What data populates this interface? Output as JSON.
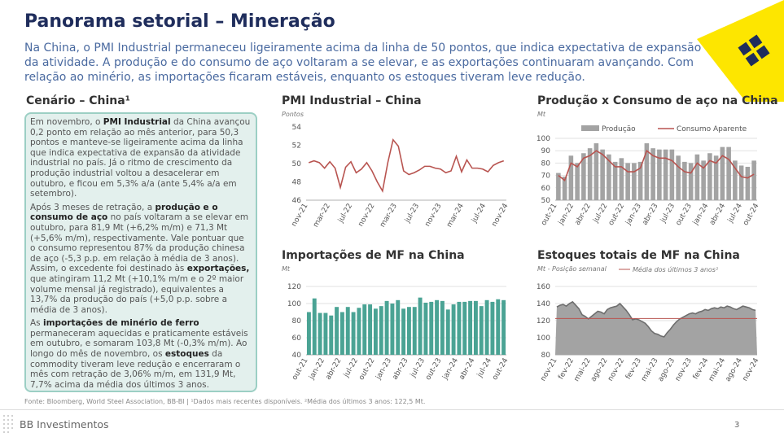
{
  "header": {
    "title": "Panorama setorial – Mineração",
    "subtitle": "Na China, o PMI Industrial permaneceu ligeiramente acima da linha de 50 pontos, que indica expectativa de expansão da atividade. A produção e do consumo de aço voltaram a se elevar, e as exportações continuaram avançando. Com relação ao minério, as importações ficaram estáveis, enquanto os estoques tiveram leve redução."
  },
  "colors": {
    "title": "#1f2d5c",
    "accent_yellow": "#fde600",
    "teal": "#4aa394",
    "grey_bar": "#9e9e9e",
    "red_line": "#b85450"
  },
  "scenario": {
    "heading": "Cenário – China¹",
    "p1_a": "Em novembro, o ",
    "p1_b": "PMI Industrial",
    "p1_c": " da China avançou 0,2 ponto em relação ao mês anterior, para 50,3 pontos e manteve-se ligeiramente acima da linha que indica expectativa de expansão da atividade industrial no país. Já o ritmo de crescimento da produção industrial voltou a desacelerar em outubro, e ficou em 5,3% a/a (ante 5,4% a/a em setembro).",
    "p2_a": "Após 3 meses de retração, a ",
    "p2_b": "produção e o consumo de aço",
    "p2_c": " no país voltaram a se elevar em outubro, para 81,9 Mt (+6,2% m/m) e 71,3 Mt (+5,6% m/m), respectivamente. Vale pontuar que o consumo representou 87% da produção chinesa de aço (-5,3 p.p. em relação à média de 3 anos). Assim, o excedente foi destinado às ",
    "p2_d": "exportações,",
    "p2_e": " que atingiram 11,2 Mt (+10,1% m/m e o 2º maior volume mensal já registrado), equivalentes a 13,7% da produção do país (+5,0 p.p. sobre a média de 3 anos).",
    "p3_a": "As ",
    "p3_b": "importações de minério de ferro",
    "p3_c": " permaneceram aquecidas e praticamente estáveis em outubro, e somaram 103,8 Mt (-0,3% m/m). Ao longo do mês de novembro, os ",
    "p3_d": "estoques",
    "p3_e": " da commodity tiveram leve redução e encerraram o mês com retração de 3,06% m/m, em 131,9 Mt, 7,7% acima da média dos últimos 3 anos."
  },
  "footnote": "Fonte: Bloomberg, World Steel Association, BB-BI | ¹Dados mais recentes disponíveis. ²Média dos últimos 3 anos: 122,5 Mt.",
  "footer": {
    "brand": "BB Investimentos",
    "page": "3"
  },
  "chart_data": [
    {
      "type": "line",
      "title": "PMI Industrial – China",
      "ylabel": "Pontos",
      "ylim": [
        46,
        54
      ],
      "yticks": [
        46,
        48,
        50,
        52,
        54
      ],
      "xticks": [
        "nov-21",
        "mar-22",
        "jul-22",
        "nov-22",
        "mar-23",
        "jul-23",
        "nov-23",
        "mar-24",
        "jul-24",
        "nov-24"
      ],
      "series": [
        {
          "values": [
            50.1,
            50.3,
            50.1,
            49.5,
            50.2,
            49.5,
            47.4,
            49.6,
            50.2,
            49.0,
            49.4,
            50.1,
            49.2,
            48.0,
            47.0,
            50.1,
            52.6,
            51.9,
            49.2,
            48.8,
            49.0,
            49.3,
            49.7,
            49.7,
            49.5,
            49.4,
            49.0,
            49.2,
            50.8,
            49.1,
            50.4,
            49.5,
            49.5,
            49.4,
            49.1,
            49.8,
            50.1,
            50.3
          ]
        }
      ]
    },
    {
      "type": "bar",
      "title": "Produção x Consumo de aço na China",
      "ylabel": "Mt",
      "ylim": [
        50,
        100
      ],
      "yticks": [
        50,
        60,
        70,
        80,
        90,
        100
      ],
      "xticks": [
        "out-21",
        "jan-22",
        "abr-22",
        "jul-22",
        "out-22",
        "jan-23",
        "abr-23",
        "jul-23",
        "out-23",
        "jan-24",
        "abr-24",
        "jul-24",
        "out-24"
      ],
      "series": [
        {
          "name": "Produção",
          "values": [
            72,
            69,
            86,
            80,
            88,
            92,
            96,
            91,
            87,
            81,
            84,
            80,
            80,
            81,
            96,
            92,
            91,
            91,
            91,
            86,
            81,
            80,
            87,
            82,
            88,
            86,
            93,
            93,
            82,
            78,
            77,
            82
          ]
        },
        {
          "name": "Consumo Aparente",
          "values": [
            70,
            66,
            80,
            77,
            84,
            86,
            90,
            87,
            82,
            77,
            77,
            73,
            73,
            76,
            90,
            86,
            84,
            84,
            82,
            77,
            73,
            72,
            80,
            76,
            82,
            80,
            86,
            83,
            76,
            69,
            68,
            71
          ]
        }
      ]
    },
    {
      "type": "bar",
      "title": "Importações de MF na China",
      "ylabel": "Mt",
      "ylim": [
        40,
        120
      ],
      "yticks": [
        40,
        60,
        80,
        100,
        120
      ],
      "xticks": [
        "out-21",
        "jan-22",
        "abr-22",
        "jul-22",
        "out-22",
        "jan-23",
        "abr-23",
        "jul-23",
        "out-23",
        "jan-24",
        "abr-24",
        "jul-24",
        "out-24"
      ],
      "series": [
        {
          "values": [
            90,
            106,
            89,
            89,
            86,
            96,
            90,
            96,
            90,
            95,
            99,
            99,
            94,
            97,
            103,
            100,
            104,
            94,
            96,
            96,
            107,
            101,
            102,
            104,
            103,
            93,
            99,
            102,
            102,
            103,
            103,
            97,
            104,
            102,
            105,
            104
          ]
        }
      ]
    },
    {
      "type": "line",
      "title": "Estoques totais de MF na China",
      "ylabel": "Mt - Posição semanal",
      "legend": [
        "Média dos últimos 3 anos²"
      ],
      "reference": 122.5,
      "ylim": [
        80,
        160
      ],
      "yticks": [
        80,
        100,
        120,
        140,
        160
      ],
      "xticks": [
        "nov-21",
        "fev-22",
        "mai-22",
        "ago-22",
        "nov-22",
        "fev-23",
        "mai-23",
        "ago-23",
        "nov-23",
        "fev-24",
        "mai-24",
        "ago-24",
        "nov-24"
      ],
      "series": [
        {
          "values": [
            136,
            138,
            139,
            137,
            140,
            142,
            138,
            134,
            127,
            125,
            122,
            125,
            128,
            131,
            130,
            128,
            133,
            135,
            136,
            137,
            140,
            136,
            132,
            127,
            121,
            122,
            121,
            119,
            117,
            113,
            108,
            105,
            104,
            102,
            101,
            106,
            110,
            115,
            119,
            122,
            124,
            126,
            128,
            129,
            128,
            130,
            131,
            133,
            132,
            134,
            135,
            134,
            136,
            135,
            137,
            136,
            134,
            133,
            135,
            137,
            136,
            135,
            133,
            132
          ]
        }
      ]
    }
  ]
}
